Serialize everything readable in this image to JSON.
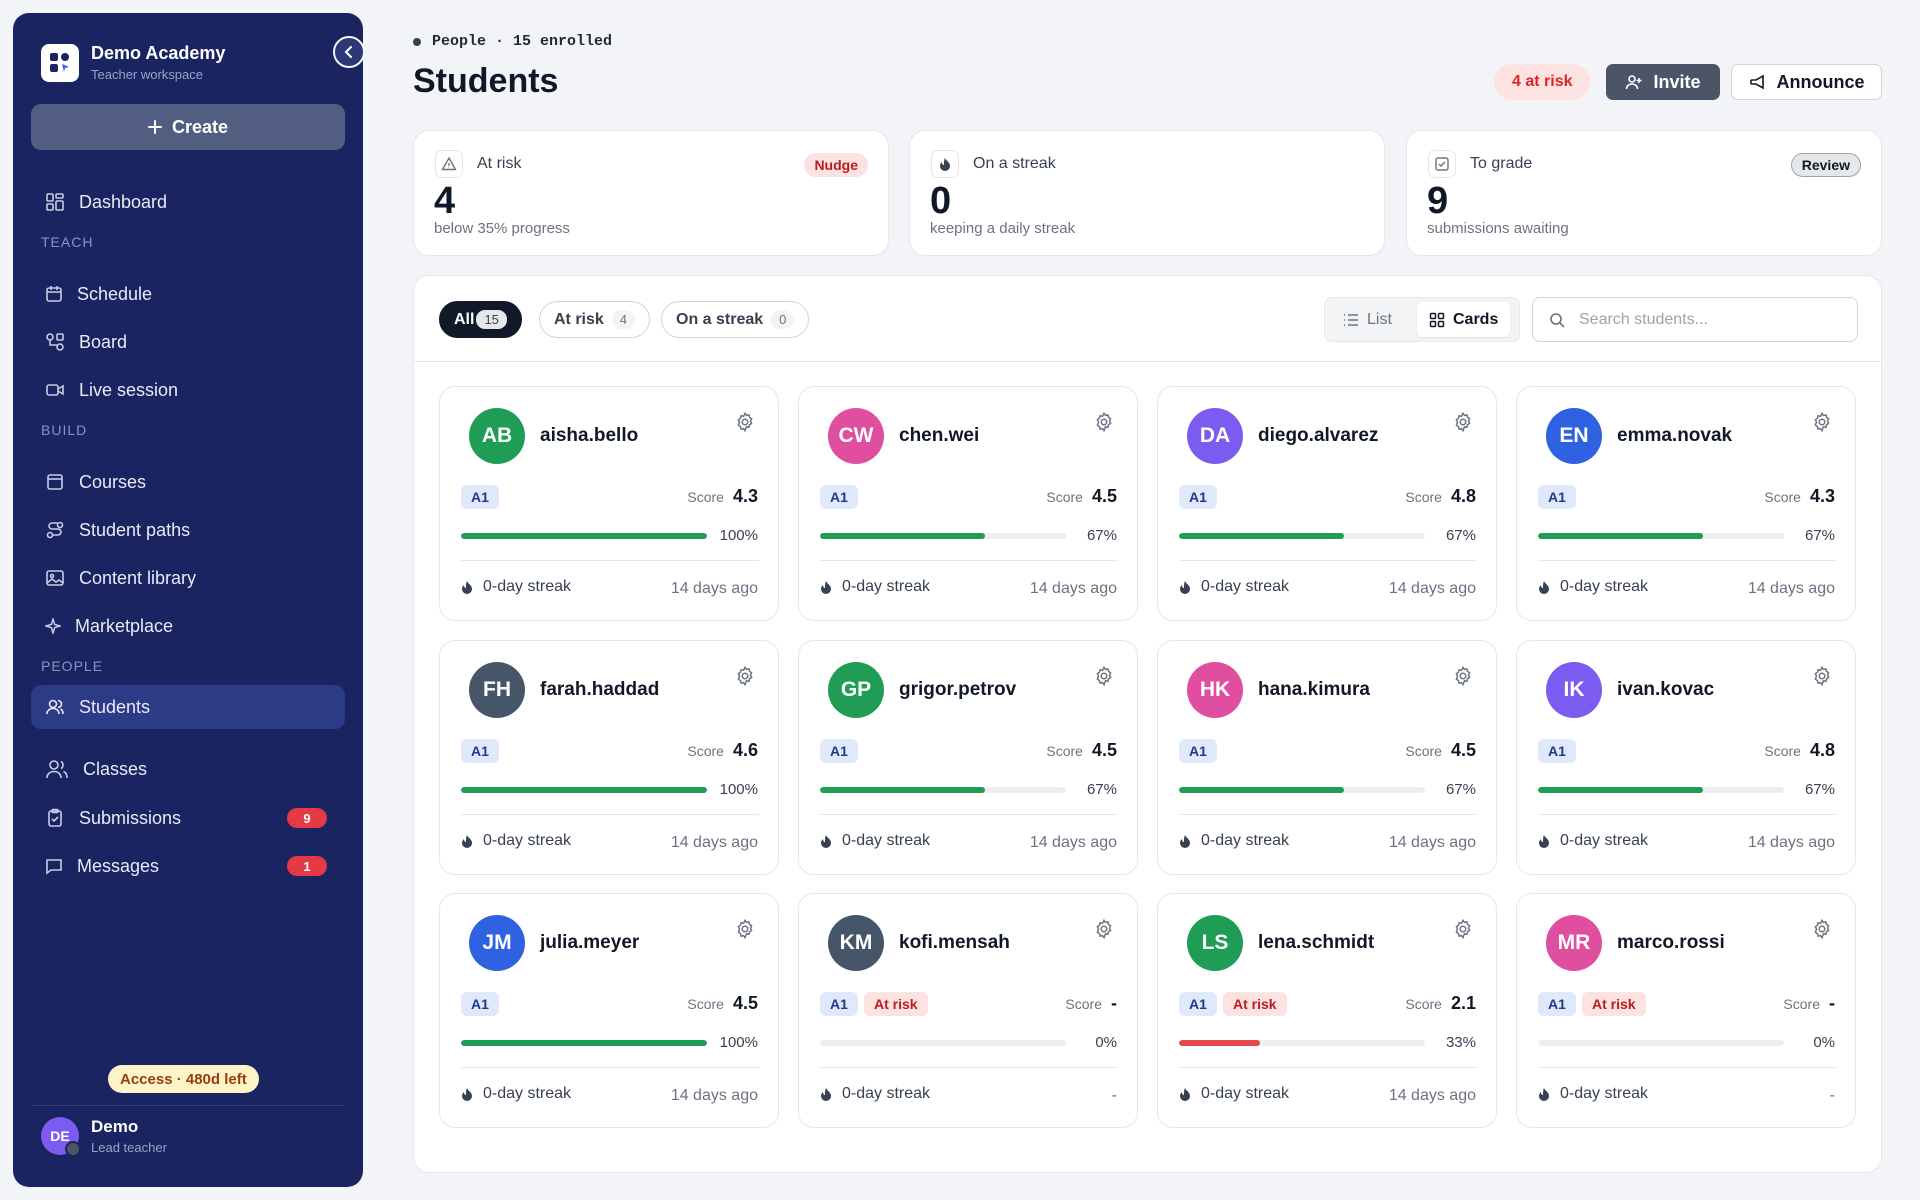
{
  "sidebar": {
    "brand_name": "Demo Academy",
    "brand_sub": "Teacher workspace",
    "create_label": "Create",
    "dashboard": "Dashboard",
    "section_teach": "TEACH",
    "schedule": "Schedule",
    "board": "Board",
    "live_session": "Live session",
    "section_build": "BUILD",
    "courses": "Courses",
    "student_paths": "Student paths",
    "content_library": "Content library",
    "marketplace": "Marketplace",
    "section_people": "PEOPLE",
    "students": "Students",
    "classes": "Classes",
    "submissions": "Submissions",
    "submissions_count": "9",
    "messages": "Messages",
    "messages_count": "1",
    "access": "Access · 480d left",
    "user_initials": "DE",
    "user_name": "Demo",
    "user_role": "Lead teacher"
  },
  "header": {
    "breadcrumb": "People · 15 enrolled",
    "title": "Students",
    "risk_pill": "4 at risk",
    "invite": "Invite",
    "announce": "Announce"
  },
  "stats": [
    {
      "label": "At risk",
      "value": "4",
      "sub": "below 35% progress",
      "tag": "Nudge"
    },
    {
      "label": "On a streak",
      "value": "0",
      "sub": "keeping a daily streak"
    },
    {
      "label": "To grade",
      "value": "9",
      "sub": "submissions awaiting",
      "tag": "Review"
    }
  ],
  "filters": {
    "all": "All",
    "all_count": "15",
    "at_risk": "At risk",
    "at_risk_count": "4",
    "streak": "On a streak",
    "streak_count": "0",
    "list": "List",
    "cards": "Cards",
    "search_placeholder": "Search students..."
  },
  "labels": {
    "score": "Score",
    "at_risk": "At risk"
  },
  "colors": {
    "green": "#1f9d55",
    "pink": "#e04ea0",
    "purple": "#7c5cf0",
    "blue": "#2f62e0",
    "slate": "#475569",
    "red": "#e5484d",
    "navy": "#1a2460"
  },
  "students": [
    {
      "initials": "AB",
      "name": "aisha.bello",
      "color": "green",
      "level": "A1",
      "score": "4.3",
      "progress": 100,
      "pct": "100%",
      "streak": "0-day streak",
      "ago": "14 days ago",
      "risk": false
    },
    {
      "initials": "CW",
      "name": "chen.wei",
      "color": "pink",
      "level": "A1",
      "score": "4.5",
      "progress": 67,
      "pct": "67%",
      "streak": "0-day streak",
      "ago": "14 days ago",
      "risk": false
    },
    {
      "initials": "DA",
      "name": "diego.alvarez",
      "color": "purple",
      "level": "A1",
      "score": "4.8",
      "progress": 67,
      "pct": "67%",
      "streak": "0-day streak",
      "ago": "14 days ago",
      "risk": false
    },
    {
      "initials": "EN",
      "name": "emma.novak",
      "color": "blue",
      "level": "A1",
      "score": "4.3",
      "progress": 67,
      "pct": "67%",
      "streak": "0-day streak",
      "ago": "14 days ago",
      "risk": false
    },
    {
      "initials": "FH",
      "name": "farah.haddad",
      "color": "slate",
      "level": "A1",
      "score": "4.6",
      "progress": 100,
      "pct": "100%",
      "streak": "0-day streak",
      "ago": "14 days ago",
      "risk": false
    },
    {
      "initials": "GP",
      "name": "grigor.petrov",
      "color": "green",
      "level": "A1",
      "score": "4.5",
      "progress": 67,
      "pct": "67%",
      "streak": "0-day streak",
      "ago": "14 days ago",
      "risk": false
    },
    {
      "initials": "HK",
      "name": "hana.kimura",
      "color": "pink",
      "level": "A1",
      "score": "4.5",
      "progress": 67,
      "pct": "67%",
      "streak": "0-day streak",
      "ago": "14 days ago",
      "risk": false
    },
    {
      "initials": "IK",
      "name": "ivan.kovac",
      "color": "purple",
      "level": "A1",
      "score": "4.8",
      "progress": 67,
      "pct": "67%",
      "streak": "0-day streak",
      "ago": "14 days ago",
      "risk": false
    },
    {
      "initials": "JM",
      "name": "julia.meyer",
      "color": "blue",
      "level": "A1",
      "score": "4.5",
      "progress": 100,
      "pct": "100%",
      "streak": "0-day streak",
      "ago": "14 days ago",
      "risk": false
    },
    {
      "initials": "KM",
      "name": "kofi.mensah",
      "color": "slate",
      "level": "A1",
      "score": "-",
      "progress": 0,
      "pct": "0%",
      "streak": "0-day streak",
      "ago": "-",
      "risk": true
    },
    {
      "initials": "LS",
      "name": "lena.schmidt",
      "color": "green",
      "level": "A1",
      "score": "2.1",
      "progress": 33,
      "pct": "33%",
      "streak": "0-day streak",
      "ago": "14 days ago",
      "risk": true
    },
    {
      "initials": "MR",
      "name": "marco.rossi",
      "color": "pink",
      "level": "A1",
      "score": "-",
      "progress": 0,
      "pct": "0%",
      "streak": "0-day streak",
      "ago": "-",
      "risk": true
    }
  ]
}
